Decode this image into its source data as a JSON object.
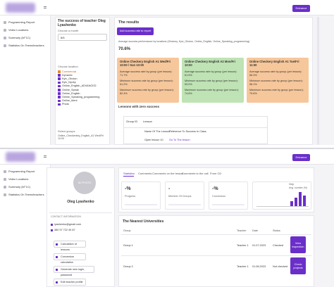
{
  "top": {
    "sidebar": [
      "Programming Report",
      "Video Locations",
      "Summary (M°1C)",
      "Statistics On Teens/teachers"
    ],
    "entrance": "Entrance",
    "filter": {
      "title": "The success of teacher Oleg Lyashenko",
      "month_label": "Choose a month",
      "month": "8/6",
      "location_label": "Choose location",
      "locations": [
        "Commercial",
        "Dynamic",
        "Kyiv_Obolon",
        "Kyiv_Nyvky",
        "Online_English_ADVANCED",
        "Online_Speak",
        "Online_English",
        "Online_Speaking_programming",
        "Online_Ident",
        "Photo"
      ],
      "groups_label": "Select groups",
      "group": "Online_Checkerkey_English_A1 Wed/Fri 10:00"
    },
    "results": {
      "title": "The results",
      "button": "Add success rate to report",
      "summary": "Average success performance by locations (Obolony, Kyiv_Obolon, Online_English, Online_Speaking_programming)",
      "value": "70.6%",
      "cards": [
        {
          "title": "Online Checkery English A1 Wed/Fri 10:00 / Sun 10:00",
          "color": "#f6c79b",
          "lines": [
            "Average success rate by group (per lesson): 71.7%",
            "Minimum success rate by group (per lesson): 61.2%",
            "Maximum success rate by group (per lesson): 82.4%"
          ]
        },
        {
          "title": "Online Checkery English A2 Mon/Fri 10:00",
          "color": "#bfe3b4",
          "lines": [
            "Average success rate by group (per lesson): 61.5%",
            "Minimum success rate by group (per lesson): 53.0%",
            "Maximum success rate by group (per lesson): 74.8%"
          ]
        },
        {
          "title": "Online Checkery English A1 Tue/Fri 11:00",
          "color": "#f6c79b",
          "lines": [
            "Average success rate by group (per lesson): 66.3%",
            "Minimum success rate by group (per lesson): 58.1%",
            "Maximum success rate by group (per lesson): 79.6%"
          ]
        }
      ],
      "zero_title": "Lessons with zero success",
      "table": {
        "headers": [
          "Group ID",
          "Lesson"
        ],
        "subheaders": [
          "Name Of The Lesson",
          "Reference To Success In Class"
        ],
        "row": [
          "Open lesson 10",
          "Go To The lesson"
        ]
      }
    }
  },
  "bottom": {
    "sidebar": [
      "Programming Report",
      "Video Locations",
      "Summary (M°1C)",
      "Statistics On Teens/teachers"
    ],
    "entrance": "Entrance",
    "profile": {
      "photo": "NO PHOTO",
      "name": "Oleg Lyashenko",
      "contact_title": "CONTACT INFORMATION",
      "email": "lyashenko@gmail.com",
      "phone": "380 97 722 49 87",
      "buttons": [
        "Calculation of lessons",
        "Conversion calculation",
        "Generate new login, password",
        "Edit teacher profile"
      ]
    },
    "tabs": [
      "Statistics",
      "Comments",
      "Comments on the lesson",
      "Comments to the call",
      "From CD"
    ],
    "stats": [
      {
        "value": "-%",
        "label": "Progress"
      },
      {
        "value": "-",
        "label": "Member Of Groups"
      },
      {
        "value": "-%",
        "label": "Conversion"
      }
    ],
    "chart": {
      "title": "Help",
      "legend": "Avg. number (%)",
      "values": [
        3,
        5,
        8,
        6
      ]
    },
    "table": {
      "title": "The Nearest Universities",
      "headers": [
        "Group",
        "Teacher",
        "Date",
        "Status"
      ],
      "rows": [
        [
          "Group 1",
          "Teacher 1",
          "01.07.2023",
          "Checked",
          "View inspection"
        ],
        [
          "Group 2",
          "Teacher 1",
          "01.08.2023",
          "Not checked",
          "Check projects"
        ]
      ]
    }
  }
}
